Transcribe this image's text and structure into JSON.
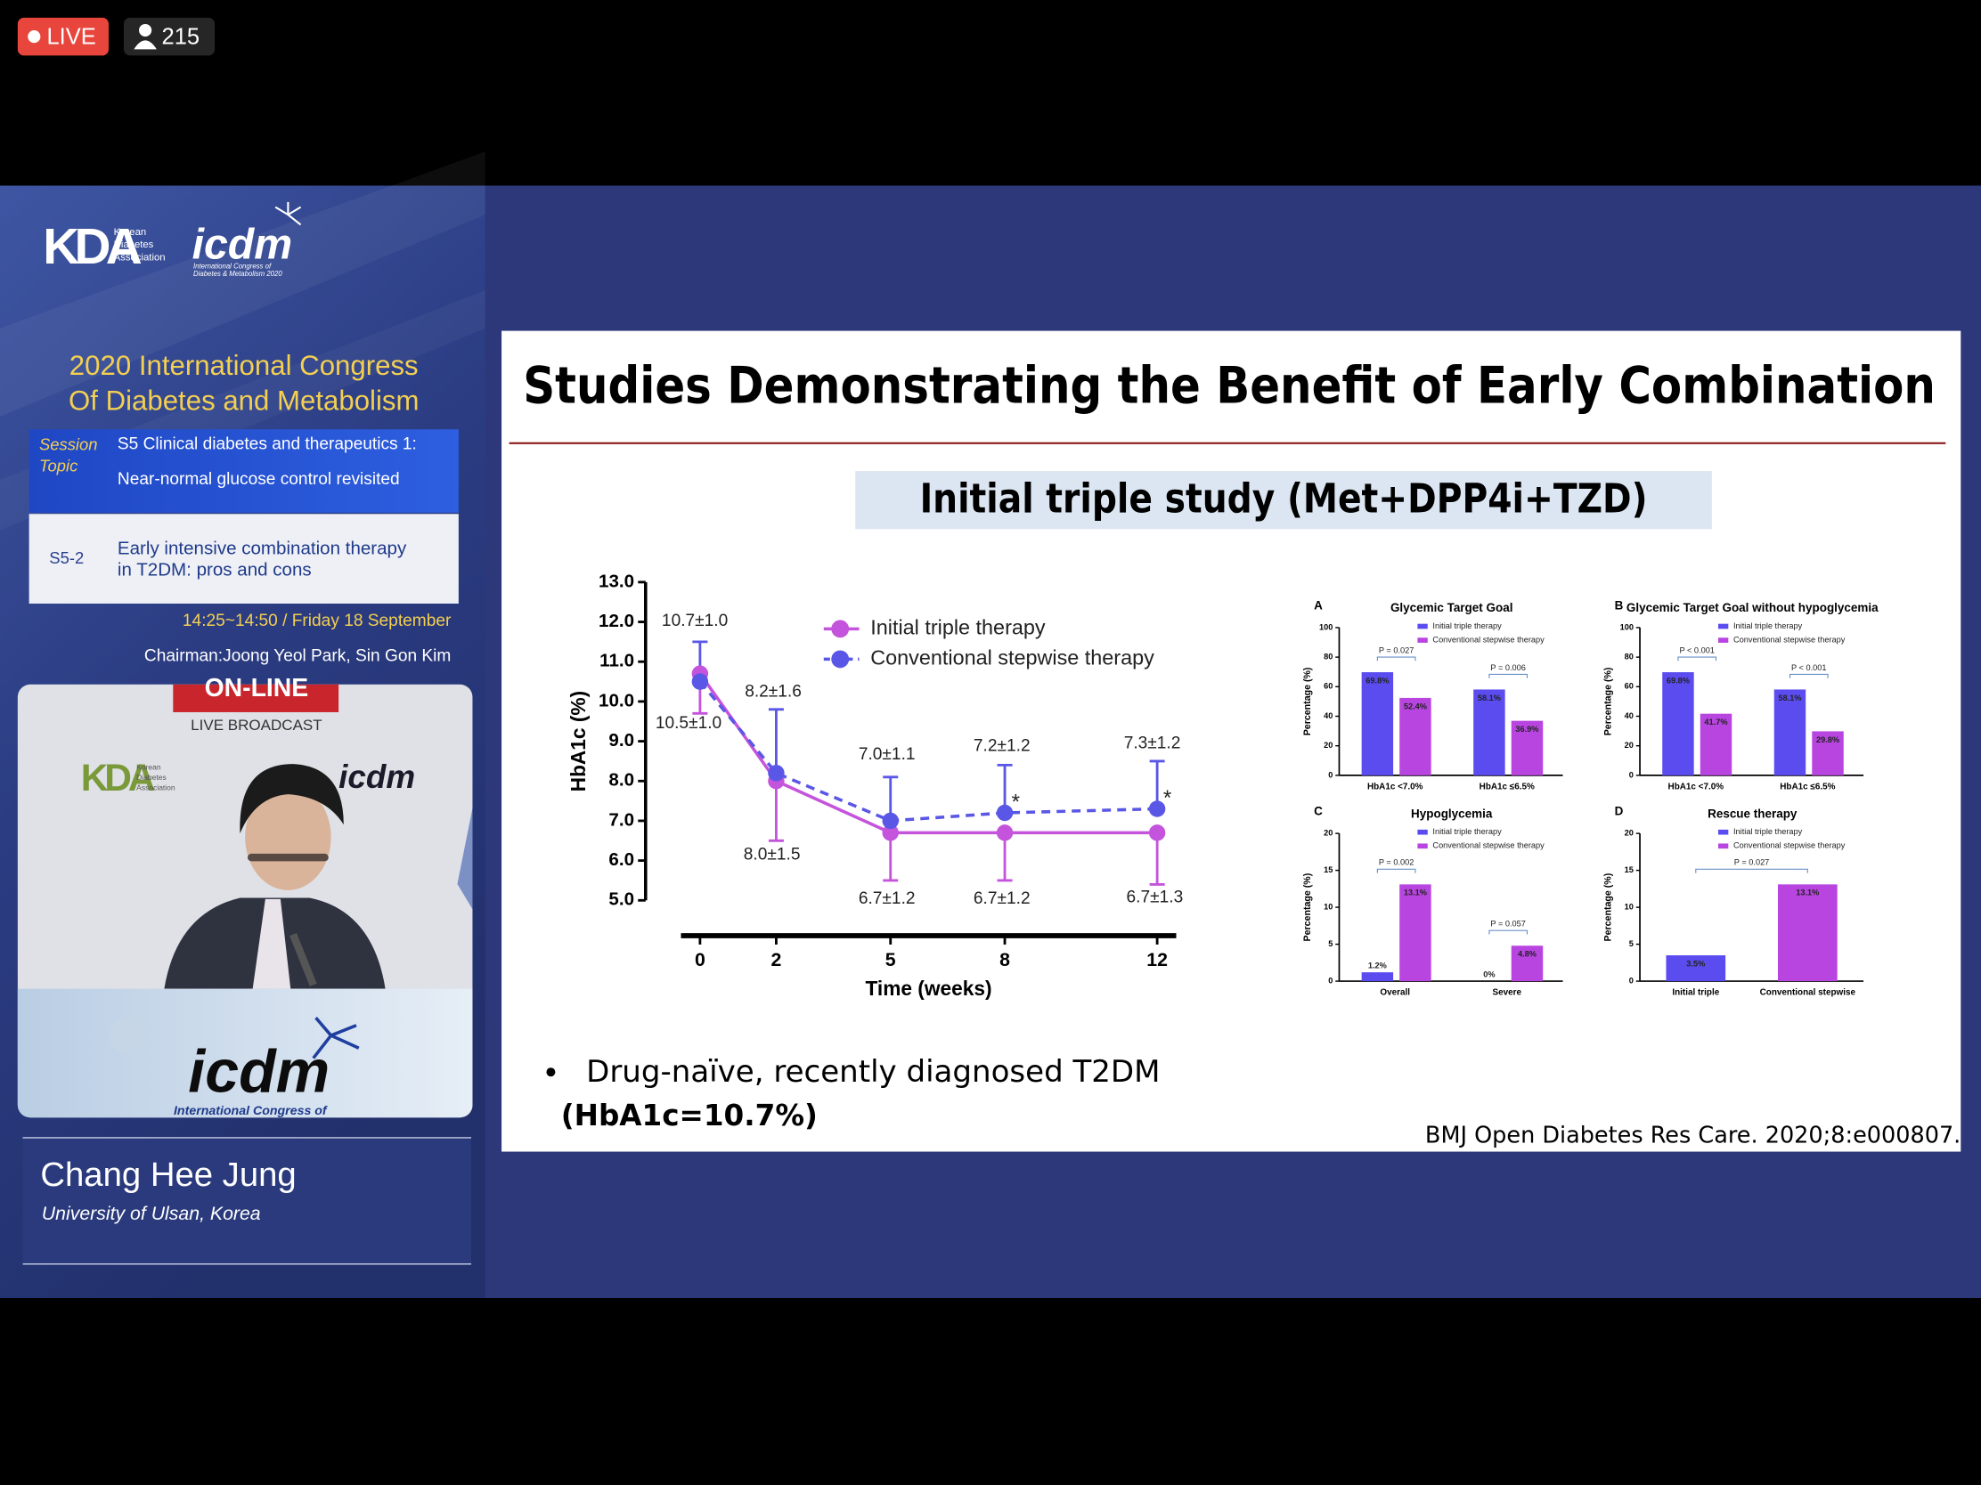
{
  "overlay": {
    "live": "LIVE",
    "viewers": "215"
  },
  "sidebar": {
    "kda_logo": "KDA",
    "kda_name": [
      "Korean",
      "Diabetes",
      "Association"
    ],
    "icdm_logo": "icdm",
    "icdm_name": [
      "International Congress of",
      "Diabetes & Metabolism 2020"
    ],
    "congress": [
      "2020 International Congress",
      "Of Diabetes and Metabolism"
    ],
    "session_label": [
      "Session",
      "Topic"
    ],
    "session": [
      "S5 Clinical diabetes and therapeutics 1:",
      "Near-normal glucose control revisited"
    ],
    "talk_code": "S5-2",
    "talk_title": [
      "Early intensive combination therapy",
      "in T2DM: pros and cons"
    ],
    "time": "14:25~14:50 / Friday 18 September",
    "chairman": "Chairman:Joong Yeol Park, Sin Gon Kim",
    "video": {
      "sign": "ON-LINE",
      "broadcast": "LIVE BROADCAST",
      "kda_logo": "KDA",
      "kda_name": [
        "Korean",
        "Diabetes",
        "Association"
      ],
      "icdm_logo": "icdm",
      "banner_logo": "icdm",
      "banner_name": "International Congress of"
    },
    "speaker": {
      "name": "Chang Hee Jung",
      "affiliation": "University of Ulsan, Korea"
    }
  },
  "slide": {
    "title": "Studies Demonstrating the Benefit of Early Combination",
    "subtitle": "Initial triple study (Met+DPP4i+TZD)",
    "bullet": "Drug-naïve, recently diagnosed T2DM",
    "bullet_note": "(HbA1c=10.7%)",
    "citation": "BMJ Open Diabetes Res Care. 2020;8:e000807.",
    "line_chart": {
      "type": "line",
      "xlabel": "Time (weeks)",
      "ylabel": "HbA1c (%)",
      "x": [
        0,
        2,
        5,
        8,
        12
      ],
      "xlim": [
        -0.5,
        12.5
      ],
      "xticks": [
        0,
        2,
        5,
        8,
        12
      ],
      "ylim": [
        5,
        13
      ],
      "yticks": [
        {
          "value": 5,
          "label": "5.0"
        },
        {
          "value": 6,
          "label": "6.0"
        },
        {
          "value": 7,
          "label": "7.0"
        },
        {
          "value": 8,
          "label": "8.0"
        },
        {
          "value": 9,
          "label": "9.0"
        },
        {
          "value": 10,
          "label": "10.0"
        },
        {
          "value": 11,
          "label": "11.0"
        },
        {
          "value": 12,
          "label": "12.0"
        },
        {
          "value": 13,
          "label": "13.0"
        }
      ],
      "series": [
        {
          "name": "Initial triple therapy",
          "color": "#c454dc",
          "dashed": false,
          "values": [
            10.7,
            8.0,
            6.7,
            6.7,
            6.7
          ],
          "errors": [
            1.0,
            1.5,
            1.2,
            1.2,
            1.3
          ],
          "value_labels": [
            "10.7±1.0",
            "8.0±1.5",
            "6.7±1.2",
            "6.7±1.2",
            "6.7±1.3"
          ]
        },
        {
          "name": "Conventional stepwise therapy",
          "color": "#5a57e6",
          "dashed": true,
          "values": [
            10.5,
            8.2,
            7.0,
            7.2,
            7.3
          ],
          "errors": [
            1.0,
            1.6,
            1.1,
            1.2,
            1.2
          ],
          "value_labels": [
            "10.5±1.0",
            "8.2±1.6",
            "7.0±1.1",
            "7.2±1.2",
            "7.3±1.2"
          ]
        }
      ],
      "annotations": [
        "*",
        "*"
      ]
    },
    "bar_charts": [
      {
        "type": "bar",
        "label": "A",
        "title": "Glycemic Target Goal",
        "ylabel": "Percentage (%)",
        "categories": [
          "HbA1c <7.0%",
          "HbA1c ≤6.5%"
        ],
        "ylim": [
          0,
          100
        ],
        "yticks": [
          0,
          20,
          40,
          60,
          80,
          100
        ],
        "series": [
          {
            "name": "Initial triple therapy",
            "color": "#5b4cf0",
            "values": [
              69.8,
              58.1
            ],
            "value_labels": [
              "69.8%",
              "58.1%"
            ]
          },
          {
            "name": "Conventional stepwise therapy",
            "color": "#b845e0",
            "values": [
              52.4,
              36.9
            ],
            "value_labels": [
              "52.4%",
              "36.9%"
            ]
          }
        ],
        "p_values": [
          "P = 0.027",
          "P = 0.006"
        ]
      },
      {
        "type": "bar",
        "label": "B",
        "title": "Glycemic Target Goal without hypoglycemia",
        "ylabel": "Percentage (%)",
        "categories": [
          "HbA1c <7.0%",
          "HbA1c ≤6.5%"
        ],
        "ylim": [
          0,
          100
        ],
        "yticks": [
          0,
          20,
          40,
          60,
          80,
          100
        ],
        "series": [
          {
            "name": "Initial triple therapy",
            "color": "#5b4cf0",
            "values": [
              69.8,
              58.1
            ],
            "value_labels": [
              "69.8%",
              "58.1%"
            ]
          },
          {
            "name": "Conventional stepwise therapy",
            "color": "#b845e0",
            "values": [
              41.7,
              29.8
            ],
            "value_labels": [
              "41.7%",
              "29.8%"
            ]
          }
        ],
        "p_values": [
          "P < 0.001",
          "P < 0.001"
        ]
      },
      {
        "type": "bar",
        "label": "C",
        "title": "Hypoglycemia",
        "ylabel": "Percentage (%)",
        "categories": [
          "Overall",
          "Severe"
        ],
        "ylim": [
          0,
          20
        ],
        "yticks": [
          0,
          5,
          10,
          15,
          20
        ],
        "series": [
          {
            "name": "Initial triple therapy",
            "color": "#5b4cf0",
            "values": [
              1.2,
              0
            ],
            "value_labels": [
              "1.2%",
              "0%"
            ]
          },
          {
            "name": "Conventional stepwise therapy",
            "color": "#b845e0",
            "values": [
              13.1,
              4.8
            ],
            "value_labels": [
              "13.1%",
              "4.8%"
            ]
          }
        ],
        "p_values": [
          "P = 0.002",
          "P = 0.057"
        ]
      },
      {
        "type": "bar",
        "label": "D",
        "title": "Rescue therapy",
        "ylabel": "Percentage (%)",
        "categories": [
          "Initial triple",
          "Conventional stepwise"
        ],
        "ylim": [
          0,
          20
        ],
        "yticks": [
          0,
          5,
          10,
          15,
          20
        ],
        "series": [
          {
            "name": "Initial triple therapy",
            "color": "#5b4cf0",
            "values": [
              3.5,
              null
            ],
            "value_labels": [
              "3.5%",
              null
            ]
          },
          {
            "name": "Conventional stepwise therapy",
            "color": "#b845e0",
            "values": [
              null,
              13.1
            ],
            "value_labels": [
              null,
              "13.1%"
            ]
          }
        ],
        "p_values": [
          "P = 0.027"
        ]
      }
    ]
  }
}
